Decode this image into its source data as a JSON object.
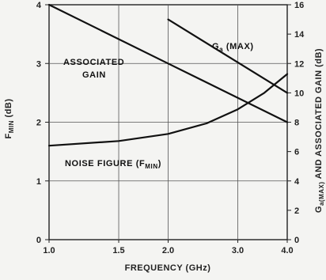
{
  "chart_data": {
    "type": "line",
    "xlabel": "FREQUENCY (GHz)",
    "ylabel_left": "F_MIN (dB)",
    "ylabel_right": "G_a(MAX) AND ASSOCIATED GAIN (dB)",
    "xlim": [
      1.0,
      4.0
    ],
    "xscale": "log",
    "ylim_left": [
      0,
      4
    ],
    "ylim_right": [
      0,
      16
    ],
    "x_ticks": [
      "1.0",
      "1.5",
      "2.0",
      "3.0",
      "4.0"
    ],
    "x_tick_values": [
      1.0,
      1.5,
      2.0,
      3.0,
      4.0
    ],
    "y_left_ticks": [
      "0",
      "1",
      "2",
      "3",
      "4"
    ],
    "y_right_ticks": [
      "0",
      "2",
      "4",
      "6",
      "8",
      "10",
      "12",
      "14",
      "16"
    ],
    "grid": true,
    "series": [
      {
        "name": "ASSOCIATED GAIN",
        "axis": "right",
        "x": [
          1.0,
          2.0,
          4.0
        ],
        "y": [
          16.0,
          12.0,
          8.0
        ]
      },
      {
        "name": "G_a (MAX)",
        "axis": "right",
        "x": [
          2.0,
          4.0
        ],
        "y": [
          15.0,
          10.0
        ]
      },
      {
        "name": "NOISE FIGURE (F_MIN)",
        "axis": "left",
        "x": [
          1.0,
          1.5,
          2.0,
          2.5,
          3.0,
          3.5,
          4.0
        ],
        "y": [
          1.6,
          1.68,
          1.8,
          1.98,
          2.22,
          2.5,
          2.82
        ]
      }
    ],
    "annotations": {
      "associated_gain_line1": "ASSOCIATED",
      "associated_gain_line2": "GAIN",
      "ga_max_main": "G",
      "ga_max_sub": "a",
      "ga_max_rest": " (MAX)",
      "nf_main": "NOISE FIGURE (F",
      "nf_sub": "MIN",
      "nf_close": ")",
      "fmin_main": "F",
      "fmin_sub": "MIN",
      "fmin_rest": " (dB)",
      "gright_main": "G",
      "gright_sub": "a(MAX)",
      "gright_rest": " AND ASSOCIATED GAIN (dB)"
    }
  }
}
